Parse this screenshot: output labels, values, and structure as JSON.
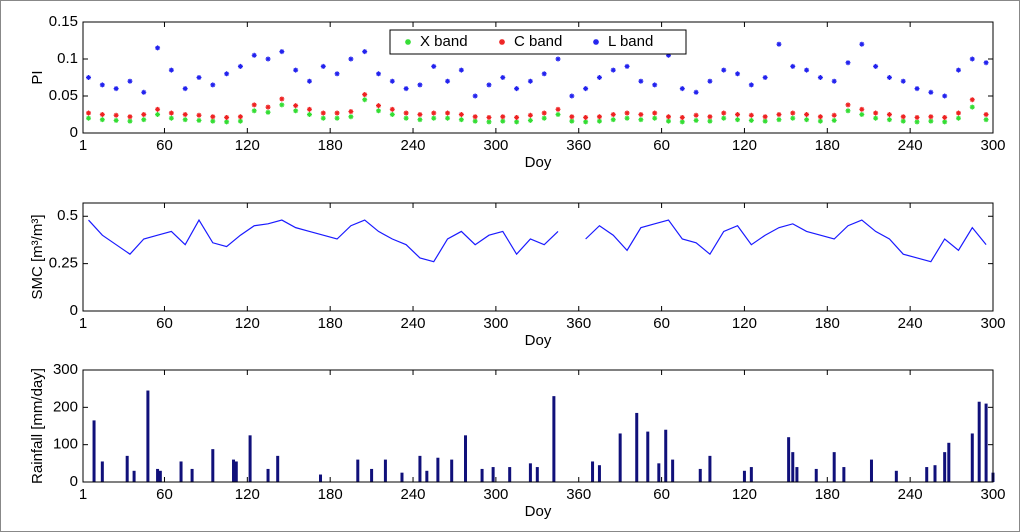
{
  "chart_data": [
    {
      "type": "scatter",
      "ylabel": "PI",
      "xlabel": "Doy",
      "legend": "upper center",
      "xlim": [
        1,
        660
      ],
      "xticks": [
        1,
        60,
        120,
        180,
        240,
        300,
        360,
        {
          "value": 420,
          "label": "60"
        },
        {
          "value": 480,
          "label": "120"
        },
        {
          "value": 540,
          "label": "180"
        },
        {
          "value": 600,
          "label": "240"
        },
        {
          "value": 660,
          "label": "300"
        }
      ],
      "ylim": [
        0,
        0.15
      ],
      "yticks": [
        0,
        0.05,
        0.1,
        0.15
      ],
      "x": [
        5,
        15,
        25,
        35,
        45,
        55,
        65,
        75,
        85,
        95,
        105,
        115,
        125,
        135,
        145,
        155,
        165,
        175,
        185,
        195,
        205,
        215,
        225,
        235,
        245,
        255,
        265,
        275,
        285,
        295,
        305,
        315,
        325,
        335,
        345,
        355,
        365,
        375,
        385,
        395,
        405,
        415,
        425,
        435,
        445,
        455,
        465,
        475,
        485,
        495,
        505,
        515,
        525,
        535,
        545,
        555,
        565,
        575,
        585,
        595,
        605,
        615,
        625,
        635,
        645,
        655
      ],
      "series": [
        {
          "name": "X band",
          "color": "#33dd33",
          "values": [
            0.02,
            0.018,
            0.017,
            0.016,
            0.018,
            0.025,
            0.02,
            0.018,
            0.017,
            0.016,
            0.015,
            0.016,
            0.03,
            0.028,
            0.038,
            0.03,
            0.025,
            0.02,
            0.02,
            0.022,
            0.045,
            0.03,
            0.025,
            0.02,
            0.018,
            0.02,
            0.02,
            0.018,
            0.016,
            0.015,
            0.016,
            0.015,
            0.017,
            0.02,
            0.025,
            0.016,
            0.015,
            0.016,
            0.018,
            0.02,
            0.018,
            0.02,
            0.016,
            0.015,
            0.017,
            0.016,
            0.02,
            0.018,
            0.017,
            0.016,
            0.018,
            0.02,
            0.018,
            0.016,
            0.017,
            0.03,
            0.025,
            0.02,
            0.018,
            0.016,
            0.015,
            0.016,
            0.015,
            0.02,
            0.035,
            0.018
          ]
        },
        {
          "name": "C band",
          "color": "#ee2222",
          "values": [
            0.027,
            0.025,
            0.024,
            0.022,
            0.025,
            0.032,
            0.027,
            0.025,
            0.024,
            0.022,
            0.021,
            0.022,
            0.038,
            0.035,
            0.046,
            0.037,
            0.032,
            0.027,
            0.027,
            0.029,
            0.052,
            0.037,
            0.032,
            0.027,
            0.025,
            0.027,
            0.027,
            0.025,
            0.022,
            0.021,
            0.022,
            0.021,
            0.024,
            0.027,
            0.032,
            0.022,
            0.021,
            0.022,
            0.025,
            0.027,
            0.025,
            0.027,
            0.022,
            0.021,
            0.024,
            0.022,
            0.027,
            0.025,
            0.024,
            0.022,
            0.025,
            0.027,
            0.025,
            0.022,
            0.024,
            0.038,
            0.032,
            0.027,
            0.025,
            0.022,
            0.021,
            0.022,
            0.021,
            0.027,
            0.045,
            0.025
          ]
        },
        {
          "name": "L band",
          "color": "#2222ee",
          "values": [
            0.075,
            0.065,
            0.06,
            0.07,
            0.055,
            0.115,
            0.085,
            0.06,
            0.075,
            0.065,
            0.08,
            0.09,
            0.105,
            0.1,
            0.11,
            0.085,
            0.07,
            0.09,
            0.08,
            0.1,
            0.11,
            0.08,
            0.07,
            0.06,
            0.065,
            0.09,
            0.07,
            0.085,
            0.05,
            0.065,
            0.075,
            0.06,
            0.07,
            0.08,
            0.1,
            0.05,
            0.06,
            0.075,
            0.085,
            0.09,
            0.07,
            0.065,
            0.105,
            0.06,
            0.055,
            0.07,
            0.085,
            0.08,
            0.065,
            0.075,
            0.12,
            0.09,
            0.085,
            0.075,
            0.07,
            0.095,
            0.12,
            0.09,
            0.075,
            0.07,
            0.06,
            0.055,
            0.05,
            0.085,
            0.1,
            0.095
          ]
        }
      ]
    },
    {
      "type": "line",
      "ylabel": "SMC [m³/m³]",
      "xlabel": "Doy",
      "xlim": [
        1,
        660
      ],
      "xticks": [
        1,
        60,
        120,
        180,
        240,
        300,
        360,
        {
          "value": 420,
          "label": "60"
        },
        {
          "value": 480,
          "label": "120"
        },
        {
          "value": 540,
          "label": "180"
        },
        {
          "value": 600,
          "label": "240"
        },
        {
          "value": 660,
          "label": "300"
        }
      ],
      "ylim": [
        0,
        0.57
      ],
      "yticks": [
        0,
        0.25,
        0.5
      ],
      "color": "#1a1aff",
      "x": [
        5,
        15,
        25,
        35,
        45,
        55,
        65,
        75,
        85,
        95,
        105,
        115,
        125,
        135,
        145,
        155,
        165,
        175,
        185,
        195,
        205,
        215,
        225,
        235,
        245,
        255,
        265,
        275,
        285,
        295,
        305,
        315,
        325,
        335,
        345,
        355,
        365,
        375,
        385,
        395,
        405,
        415,
        425,
        435,
        445,
        455,
        465,
        475,
        485,
        495,
        505,
        515,
        525,
        535,
        545,
        555,
        565,
        575,
        585,
        595,
        605,
        615,
        625,
        635,
        645,
        655
      ],
      "values": [
        0.48,
        0.4,
        0.35,
        0.3,
        0.38,
        0.4,
        0.42,
        0.35,
        0.48,
        0.36,
        0.34,
        0.4,
        0.45,
        0.46,
        0.48,
        0.44,
        0.42,
        0.4,
        0.38,
        0.45,
        0.48,
        0.42,
        0.38,
        0.35,
        0.28,
        0.26,
        0.38,
        0.42,
        0.35,
        0.4,
        0.42,
        0.3,
        0.38,
        0.35,
        0.42,
        null,
        0.38,
        0.45,
        0.4,
        0.32,
        0.44,
        0.46,
        0.48,
        0.38,
        0.36,
        0.3,
        0.42,
        0.45,
        0.35,
        0.4,
        0.44,
        0.46,
        0.42,
        0.4,
        0.38,
        0.45,
        0.48,
        0.42,
        0.38,
        0.3,
        0.28,
        0.26,
        0.38,
        0.32,
        0.44,
        0.35
      ]
    },
    {
      "type": "bar",
      "ylabel": "Rainfall [mm/day]",
      "xlabel": "Doy",
      "xlim": [
        1,
        660
      ],
      "xticks": [
        1,
        60,
        120,
        180,
        240,
        300,
        360,
        {
          "value": 420,
          "label": "60"
        },
        {
          "value": 480,
          "label": "120"
        },
        {
          "value": 540,
          "label": "180"
        },
        {
          "value": 600,
          "label": "240"
        },
        {
          "value": 660,
          "label": "300"
        }
      ],
      "ylim": [
        0,
        300
      ],
      "yticks": [
        0,
        100,
        200,
        300
      ],
      "color": "#10107a",
      "x": [
        9,
        15,
        33,
        38,
        48,
        55,
        57,
        72,
        80,
        95,
        110,
        112,
        122,
        135,
        142,
        173,
        200,
        210,
        220,
        232,
        245,
        250,
        258,
        268,
        278,
        290,
        298,
        310,
        325,
        330,
        342,
        370,
        375,
        390,
        402,
        410,
        418,
        423,
        428,
        448,
        455,
        480,
        485,
        512,
        515,
        518,
        532,
        545,
        552,
        572,
        590,
        612,
        618,
        625,
        628,
        645,
        650,
        655,
        660
      ],
      "values": [
        165,
        55,
        70,
        30,
        245,
        35,
        30,
        55,
        35,
        88,
        60,
        55,
        125,
        35,
        70,
        20,
        60,
        35,
        60,
        25,
        70,
        30,
        65,
        60,
        125,
        35,
        40,
        40,
        50,
        40,
        230,
        55,
        45,
        130,
        185,
        135,
        50,
        140,
        60,
        35,
        70,
        30,
        40,
        120,
        80,
        40,
        35,
        80,
        40,
        60,
        30,
        40,
        45,
        80,
        105,
        130,
        215,
        210,
        25
      ]
    }
  ]
}
